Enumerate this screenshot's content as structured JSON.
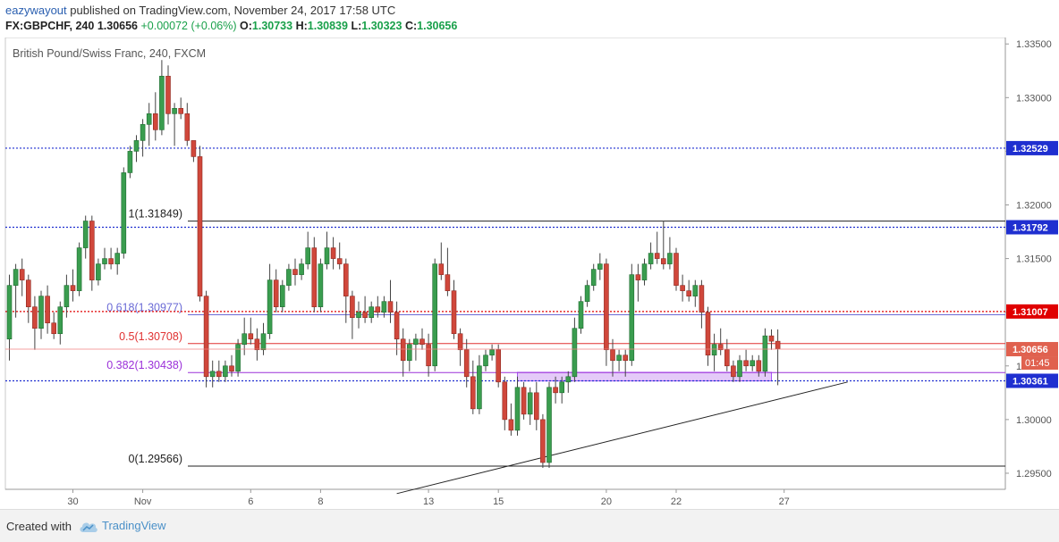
{
  "header": {
    "author": "eazywayout",
    "published_text": "published on TradingView.com, November 24, 2017 17:58 UTC",
    "symbol": "FX:GBPCHF, 240",
    "last": "1.30656",
    "change": "+0.00072 (+0.06%)",
    "o_label": "O:",
    "o_value": "1.30733",
    "h_label": "H:",
    "h_value": "1.30839",
    "l_label": "L:",
    "l_value": "1.30323",
    "c_label": "C:",
    "c_value": "1.30656"
  },
  "footer": {
    "created_with": "Created with",
    "brand": "TradingView"
  },
  "chart_data": {
    "type": "candlestick",
    "title": "British Pound/Swiss Franc, 240, FXCM",
    "ylim": [
      1.2935,
      1.3356
    ],
    "y_ticks": [
      "1.33500",
      "1.33000",
      "1.32500",
      "1.32000",
      "1.31500",
      "1.31000",
      "1.30500",
      "1.30000",
      "1.29500"
    ],
    "x_ticks": [
      {
        "label": "30",
        "index": 10
      },
      {
        "label": "Nov",
        "index": 21
      },
      {
        "label": "6",
        "index": 38
      },
      {
        "label": "8",
        "index": 49
      },
      {
        "label": "13",
        "index": 66
      },
      {
        "label": "15",
        "index": 77
      },
      {
        "label": "20",
        "index": 94
      },
      {
        "label": "22",
        "index": 105
      },
      {
        "label": "27",
        "index": 122
      }
    ],
    "fib_levels": [
      {
        "label": "1(1.31849)",
        "price": 1.31849,
        "color": "#222222"
      },
      {
        "label": "0.618(1.30977)",
        "price": 1.30977,
        "color": "#6b6bd6"
      },
      {
        "label": "0.5(1.30708)",
        "price": 1.30708,
        "color": "#e03030"
      },
      {
        "label": "0.382(1.30438)",
        "price": 1.30438,
        "color": "#9b30d9"
      },
      {
        "label": "0(1.29566)",
        "price": 1.29566,
        "color": "#222222"
      }
    ],
    "hlines": [
      {
        "price": 1.32529,
        "label": "1.32529",
        "color": "#1f2fd0"
      },
      {
        "price": 1.31792,
        "label": "1.31792",
        "color": "#1f2fd0"
      },
      {
        "price": 1.31007,
        "label": "1.31007",
        "color": "#e00000"
      },
      {
        "price": 1.30361,
        "label": "1.30361",
        "color": "#1f2fd0"
      }
    ],
    "last_price": {
      "price": 1.30656,
      "label": "1.30656"
    },
    "countdown": "01:45",
    "zone": {
      "from_index": 80,
      "to_index": 120,
      "low": 1.3036,
      "high": 1.3044
    },
    "trendline": {
      "from_index": 61,
      "from_price": 1.2931,
      "to_index": 132,
      "to_price": 1.3035
    },
    "candles": [
      [
        1.3075,
        1.3135,
        1.3055,
        1.3125
      ],
      [
        1.3125,
        1.3145,
        1.3095,
        1.314
      ],
      [
        1.314,
        1.315,
        1.3115,
        1.313
      ],
      [
        1.313,
        1.3135,
        1.309,
        1.3105
      ],
      [
        1.3105,
        1.3115,
        1.3065,
        1.3085
      ],
      [
        1.3085,
        1.312,
        1.3075,
        1.3115
      ],
      [
        1.3115,
        1.3125,
        1.308,
        1.309
      ],
      [
        1.309,
        1.31,
        1.3075,
        1.308
      ],
      [
        1.308,
        1.311,
        1.307,
        1.3105
      ],
      [
        1.3105,
        1.3135,
        1.3095,
        1.3125
      ],
      [
        1.3125,
        1.314,
        1.311,
        1.312
      ],
      [
        1.312,
        1.3165,
        1.3115,
        1.316
      ],
      [
        1.316,
        1.319,
        1.315,
        1.3185
      ],
      [
        1.3185,
        1.319,
        1.312,
        1.313
      ],
      [
        1.313,
        1.315,
        1.3125,
        1.3145
      ],
      [
        1.3145,
        1.316,
        1.314,
        1.315
      ],
      [
        1.315,
        1.316,
        1.314,
        1.3145
      ],
      [
        1.3145,
        1.316,
        1.3135,
        1.3155
      ],
      [
        1.3155,
        1.3235,
        1.315,
        1.323
      ],
      [
        1.323,
        1.3255,
        1.3225,
        1.325
      ],
      [
        1.325,
        1.3265,
        1.324,
        1.326
      ],
      [
        1.326,
        1.328,
        1.3245,
        1.3275
      ],
      [
        1.3275,
        1.3295,
        1.3255,
        1.3285
      ],
      [
        1.3285,
        1.3305,
        1.326,
        1.327
      ],
      [
        1.327,
        1.3335,
        1.3265,
        1.332
      ],
      [
        1.332,
        1.333,
        1.3275,
        1.3285
      ],
      [
        1.3285,
        1.3295,
        1.3255,
        1.329
      ],
      [
        1.329,
        1.33,
        1.328,
        1.3285
      ],
      [
        1.3285,
        1.3295,
        1.3255,
        1.326
      ],
      [
        1.326,
        1.326,
        1.324,
        1.3245
      ],
      [
        1.3245,
        1.3255,
        1.311,
        1.3115
      ],
      [
        1.3115,
        1.312,
        1.303,
        1.304
      ],
      [
        1.304,
        1.3055,
        1.303,
        1.3045
      ],
      [
        1.3045,
        1.3055,
        1.3035,
        1.304
      ],
      [
        1.304,
        1.3055,
        1.3035,
        1.305
      ],
      [
        1.305,
        1.306,
        1.304,
        1.3045
      ],
      [
        1.3045,
        1.3075,
        1.304,
        1.307
      ],
      [
        1.307,
        1.3095,
        1.306,
        1.308
      ],
      [
        1.308,
        1.3095,
        1.307,
        1.3075
      ],
      [
        1.3075,
        1.3085,
        1.3055,
        1.3065
      ],
      [
        1.3065,
        1.309,
        1.306,
        1.308
      ],
      [
        1.308,
        1.3145,
        1.3075,
        1.313
      ],
      [
        1.313,
        1.314,
        1.31,
        1.3105
      ],
      [
        1.3105,
        1.313,
        1.31,
        1.3125
      ],
      [
        1.3125,
        1.3145,
        1.312,
        1.314
      ],
      [
        1.314,
        1.315,
        1.3125,
        1.3135
      ],
      [
        1.3135,
        1.315,
        1.313,
        1.3145
      ],
      [
        1.3145,
        1.3175,
        1.314,
        1.316
      ],
      [
        1.316,
        1.317,
        1.31,
        1.3105
      ],
      [
        1.3105,
        1.315,
        1.31,
        1.3145
      ],
      [
        1.3145,
        1.3175,
        1.314,
        1.316
      ],
      [
        1.316,
        1.317,
        1.314,
        1.315
      ],
      [
        1.315,
        1.3165,
        1.314,
        1.3145
      ],
      [
        1.3145,
        1.315,
        1.309,
        1.3115
      ],
      [
        1.3115,
        1.312,
        1.3075,
        1.3095
      ],
      [
        1.3095,
        1.311,
        1.3085,
        1.31
      ],
      [
        1.31,
        1.3115,
        1.309,
        1.3095
      ],
      [
        1.3095,
        1.311,
        1.309,
        1.3105
      ],
      [
        1.3105,
        1.3115,
        1.3095,
        1.31
      ],
      [
        1.31,
        1.3115,
        1.3095,
        1.311
      ],
      [
        1.311,
        1.313,
        1.309,
        1.31
      ],
      [
        1.31,
        1.311,
        1.306,
        1.3075
      ],
      [
        1.3075,
        1.3085,
        1.304,
        1.3055
      ],
      [
        1.3055,
        1.3075,
        1.3045,
        1.307
      ],
      [
        1.307,
        1.308,
        1.3055,
        1.3075
      ],
      [
        1.3075,
        1.3085,
        1.3065,
        1.307
      ],
      [
        1.307,
        1.308,
        1.304,
        1.305
      ],
      [
        1.305,
        1.315,
        1.3045,
        1.3145
      ],
      [
        1.3145,
        1.3165,
        1.313,
        1.3135
      ],
      [
        1.3135,
        1.316,
        1.3115,
        1.312
      ],
      [
        1.312,
        1.313,
        1.3075,
        1.308
      ],
      [
        1.308,
        1.3085,
        1.305,
        1.3065
      ],
      [
        1.3065,
        1.3075,
        1.303,
        1.304
      ],
      [
        1.304,
        1.3055,
        1.3005,
        1.301
      ],
      [
        1.301,
        1.306,
        1.3005,
        1.305
      ],
      [
        1.305,
        1.3065,
        1.3045,
        1.306
      ],
      [
        1.306,
        1.307,
        1.3055,
        1.3065
      ],
      [
        1.3065,
        1.307,
        1.303,
        1.3035
      ],
      [
        1.3035,
        1.304,
        1.299,
        1.3
      ],
      [
        1.3,
        1.3015,
        1.2985,
        1.299
      ],
      [
        1.299,
        1.304,
        1.2985,
        1.303
      ],
      [
        1.303,
        1.3035,
        1.3,
        1.3005
      ],
      [
        1.3005,
        1.303,
        1.2995,
        1.3025
      ],
      [
        1.3025,
        1.3035,
        1.299,
        1.3
      ],
      [
        1.3,
        1.3005,
        1.2955,
        1.296
      ],
      [
        1.296,
        1.3035,
        1.2955,
        1.303
      ],
      [
        1.303,
        1.304,
        1.3015,
        1.3025
      ],
      [
        1.3025,
        1.304,
        1.3015,
        1.3035
      ],
      [
        1.3035,
        1.3045,
        1.3025,
        1.304
      ],
      [
        1.304,
        1.3095,
        1.3035,
        1.3085
      ],
      [
        1.3085,
        1.3115,
        1.308,
        1.311
      ],
      [
        1.311,
        1.313,
        1.3105,
        1.3125
      ],
      [
        1.3125,
        1.3145,
        1.312,
        1.314
      ],
      [
        1.314,
        1.3155,
        1.313,
        1.3145
      ],
      [
        1.3145,
        1.315,
        1.305,
        1.3065
      ],
      [
        1.3065,
        1.3075,
        1.304,
        1.3055
      ],
      [
        1.3055,
        1.3065,
        1.3045,
        1.306
      ],
      [
        1.306,
        1.3065,
        1.304,
        1.3055
      ],
      [
        1.3055,
        1.3145,
        1.305,
        1.3135
      ],
      [
        1.3135,
        1.3145,
        1.311,
        1.313
      ],
      [
        1.313,
        1.315,
        1.3125,
        1.3145
      ],
      [
        1.3145,
        1.3165,
        1.314,
        1.3155
      ],
      [
        1.3155,
        1.3175,
        1.3145,
        1.315
      ],
      [
        1.315,
        1.3185,
        1.314,
        1.3145
      ],
      [
        1.3145,
        1.317,
        1.314,
        1.3155
      ],
      [
        1.3155,
        1.316,
        1.312,
        1.3125
      ],
      [
        1.3125,
        1.3135,
        1.311,
        1.312
      ],
      [
        1.312,
        1.313,
        1.311,
        1.3115
      ],
      [
        1.3115,
        1.313,
        1.3105,
        1.3125
      ],
      [
        1.3125,
        1.313,
        1.3085,
        1.31
      ],
      [
        1.31,
        1.3105,
        1.305,
        1.306
      ],
      [
        1.306,
        1.308,
        1.3045,
        1.307
      ],
      [
        1.307,
        1.3085,
        1.306,
        1.3065
      ],
      [
        1.3065,
        1.3075,
        1.3045,
        1.305
      ],
      [
        1.305,
        1.3055,
        1.3035,
        1.304
      ],
      [
        1.304,
        1.306,
        1.3035,
        1.3055
      ],
      [
        1.3055,
        1.3065,
        1.3045,
        1.305
      ],
      [
        1.305,
        1.306,
        1.3045,
        1.3055
      ],
      [
        1.3055,
        1.306,
        1.304,
        1.3045
      ],
      [
        1.3045,
        1.3085,
        1.304,
        1.3078
      ],
      [
        1.3078,
        1.3084,
        1.3065,
        1.3073
      ],
      [
        1.3073,
        1.3084,
        1.3032,
        1.3066
      ]
    ]
  }
}
